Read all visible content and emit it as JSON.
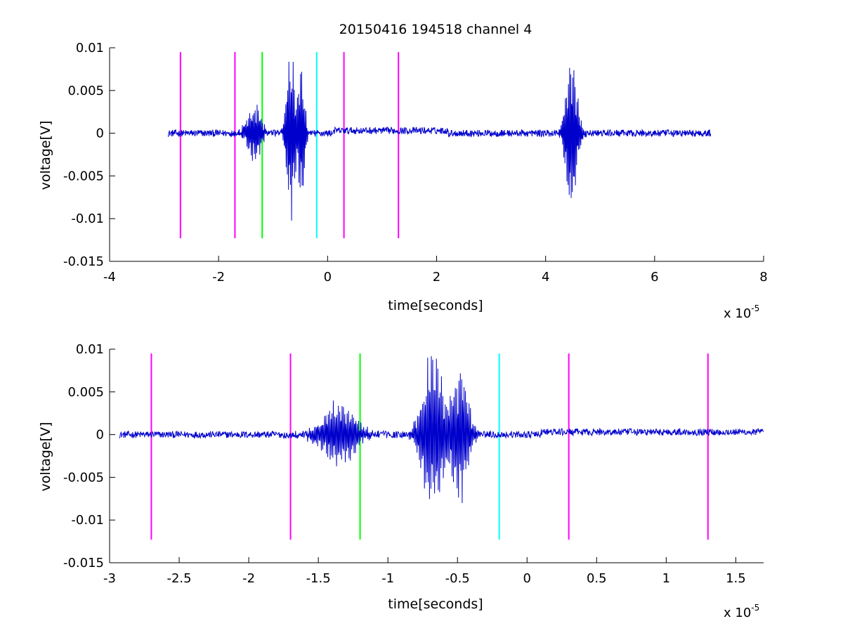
{
  "chart_data": [
    {
      "type": "line",
      "title": "20150416 194518 channel 4",
      "xlabel": "time[seconds]",
      "ylabel": "voltage[V]",
      "x_multiplier_label": "x 10",
      "x_multiplier_exp": "-5",
      "xlim": [
        -4,
        8
      ],
      "ylim": [
        -0.015,
        0.01
      ],
      "xticks": [
        -4,
        -2,
        0,
        2,
        4,
        6,
        8
      ],
      "xtick_labels": [
        "-4",
        "-2",
        "0",
        "2",
        "4",
        "6",
        "8"
      ],
      "yticks": [
        0.01,
        0.005,
        0,
        -0.005,
        -0.01,
        -0.015
      ],
      "ytick_labels": [
        "0.01",
        "0.005",
        "0",
        "-0.005",
        "-0.01",
        "-0.015"
      ],
      "signal_color": "#0000cc",
      "signal_range": [
        -2.93,
        7.03
      ],
      "signal_bursts": [
        {
          "t": -1.35,
          "amp": 0.004,
          "dur": 0.25
        },
        {
          "t": -0.68,
          "amp": 0.011,
          "dur": 0.15
        },
        {
          "t": -0.48,
          "amp": 0.0085,
          "dur": 0.12
        },
        {
          "t": 4.47,
          "amp": 0.011,
          "dur": 0.2
        }
      ],
      "markers": [
        {
          "x": -2.7,
          "color": "#ff00ff"
        },
        {
          "x": -1.7,
          "color": "#ff00ff"
        },
        {
          "x": -1.2,
          "color": "#00ff00"
        },
        {
          "x": -0.2,
          "color": "#00ffff"
        },
        {
          "x": 0.3,
          "color": "#ff00ff"
        },
        {
          "x": 1.3,
          "color": "#ff00ff"
        }
      ],
      "marker_range": [
        -0.0123,
        0.0095
      ],
      "grid": false
    },
    {
      "type": "line",
      "title": "",
      "xlabel": "time[seconds]",
      "ylabel": "voltage[V]",
      "x_multiplier_label": "x 10",
      "x_multiplier_exp": "-5",
      "xlim": [
        -3.0,
        1.7
      ],
      "ylim": [
        -0.015,
        0.01
      ],
      "xticks": [
        -3,
        -2.5,
        -2,
        -1.5,
        -1,
        -0.5,
        0,
        0.5,
        1,
        1.5
      ],
      "xtick_labels": [
        "-3",
        "-2.5",
        "-2",
        "-1.5",
        "-1",
        "-0.5",
        "0",
        "0.5",
        "1",
        "1.5"
      ],
      "yticks": [
        0.01,
        0.005,
        0,
        -0.005,
        -0.01,
        -0.015
      ],
      "ytick_labels": [
        "0.01",
        "0.005",
        "0",
        "-0.005",
        "-0.01",
        "-0.015"
      ],
      "signal_color": "#0000cc",
      "signal_range": [
        -2.93,
        1.7
      ],
      "signal_bursts": [
        {
          "t": -1.35,
          "amp": 0.004,
          "dur": 0.25
        },
        {
          "t": -0.68,
          "amp": 0.011,
          "dur": 0.15
        },
        {
          "t": -0.48,
          "amp": 0.0085,
          "dur": 0.12
        }
      ],
      "markers": [
        {
          "x": -2.7,
          "color": "#ff00ff"
        },
        {
          "x": -1.7,
          "color": "#ff00ff"
        },
        {
          "x": -1.2,
          "color": "#00ff00"
        },
        {
          "x": -0.2,
          "color": "#00ffff"
        },
        {
          "x": 0.3,
          "color": "#ff00ff"
        },
        {
          "x": 1.3,
          "color": "#ff00ff"
        }
      ],
      "marker_range": [
        -0.0123,
        0.0095
      ],
      "grid": false
    }
  ]
}
